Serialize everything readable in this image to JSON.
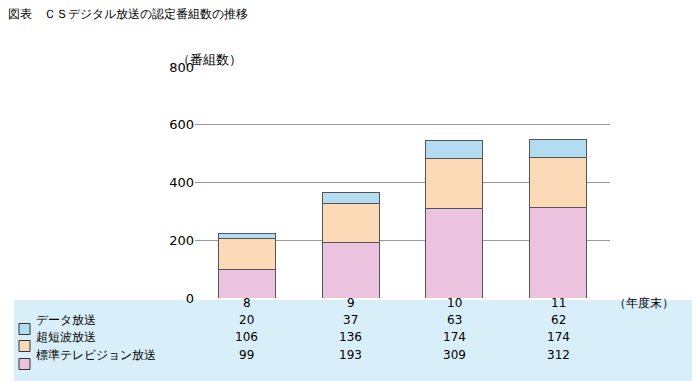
{
  "chart_data": {
    "type": "bar",
    "title": "図表　ＣＳデジタル放送の認定番組数の推移",
    "y_label": "（番組数）",
    "x_label": "（年度末）",
    "categories": [
      "8",
      "9",
      "10",
      "11"
    ],
    "series": [
      {
        "name": "データ放送",
        "color": "#b3dcf3",
        "values": [
          20,
          37,
          63,
          62
        ]
      },
      {
        "name": "超短波放送",
        "color": "#fcdab8",
        "values": [
          106,
          136,
          174,
          174
        ]
      },
      {
        "name": "標準テレビジョン放送",
        "color": "#ebc3df",
        "values": [
          99,
          193,
          309,
          312
        ]
      }
    ],
    "stacked": true,
    "ylim": [
      0,
      800
    ],
    "yticks": [
      0,
      200,
      400,
      600,
      800
    ],
    "grid": true
  }
}
